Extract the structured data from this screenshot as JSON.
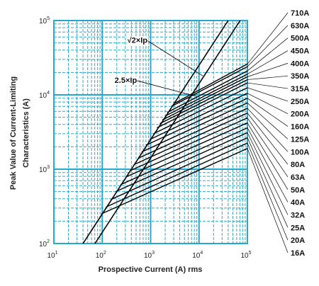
{
  "chart_data": {
    "type": "line",
    "title": "",
    "xlabel": "Prospective Current (A) rms",
    "ylabel_line1": "Peak Value of Current-Limiting",
    "ylabel_line2": "Characteristics (A)",
    "x_scale": "log",
    "y_scale": "log",
    "xlim": [
      10,
      100000
    ],
    "ylim": [
      100,
      100000
    ],
    "x_ticks": [
      {
        "value": 10,
        "mantissa": "10",
        "exp": "1"
      },
      {
        "value": 100,
        "mantissa": "10",
        "exp": "2"
      },
      {
        "value": 1000,
        "mantissa": "10",
        "exp": "3"
      },
      {
        "value": 10000,
        "mantissa": "10",
        "exp": "4"
      },
      {
        "value": 100000,
        "mantissa": "10",
        "exp": "5"
      }
    ],
    "y_ticks": [
      {
        "value": 100,
        "mantissa": "10",
        "exp": "2"
      },
      {
        "value": 1000,
        "mantissa": "10",
        "exp": "3"
      },
      {
        "value": 10000,
        "mantissa": "10",
        "exp": "4"
      },
      {
        "value": 100000,
        "mantissa": "10",
        "exp": "5"
      }
    ],
    "grid": true,
    "grid_color": "#29a8c9",
    "line_color": "#000000",
    "reference_lines": [
      {
        "name": "√2×Ip",
        "factor": 1.414,
        "annotation_at": [
          12000,
          18000
        ]
      },
      {
        "name": "2.5×Ip",
        "factor": 2.5,
        "annotation_at": [
          9000,
          9500
        ]
      }
    ],
    "series": [
      {
        "name": "710A",
        "start": [
          3000,
          7600
        ],
        "end": [
          100000,
          26000
        ]
      },
      {
        "name": "630A",
        "start": [
          2700,
          7000
        ],
        "end": [
          100000,
          24000
        ]
      },
      {
        "name": "500A",
        "start": [
          2200,
          5800
        ],
        "end": [
          100000,
          21000
        ]
      },
      {
        "name": "450A",
        "start": [
          2000,
          5200
        ],
        "end": [
          100000,
          19000
        ]
      },
      {
        "name": "400A",
        "start": [
          1750,
          4600
        ],
        "end": [
          100000,
          17500
        ]
      },
      {
        "name": "350A",
        "start": [
          1550,
          4100
        ],
        "end": [
          100000,
          16000
        ]
      },
      {
        "name": "315A",
        "start": [
          1350,
          3600
        ],
        "end": [
          100000,
          14500
        ]
      },
      {
        "name": "250A",
        "start": [
          1150,
          3000
        ],
        "end": [
          100000,
          12500
        ]
      },
      {
        "name": "200A",
        "start": [
          950,
          2500
        ],
        "end": [
          100000,
          10500
        ]
      },
      {
        "name": "160A",
        "start": [
          800,
          2100
        ],
        "end": [
          100000,
          9000
        ]
      },
      {
        "name": "125A",
        "start": [
          650,
          1700
        ],
        "end": [
          100000,
          7800
        ]
      },
      {
        "name": "100A",
        "start": [
          550,
          1400
        ],
        "end": [
          100000,
          6600
        ]
      },
      {
        "name": "80A",
        "start": [
          450,
          1150
        ],
        "end": [
          100000,
          5700
        ]
      },
      {
        "name": "63A",
        "start": [
          370,
          950
        ],
        "end": [
          100000,
          4900
        ]
      },
      {
        "name": "50A",
        "start": [
          300,
          780
        ],
        "end": [
          100000,
          4200
        ]
      },
      {
        "name": "40A",
        "start": [
          240,
          620
        ],
        "end": [
          100000,
          3600
        ]
      },
      {
        "name": "32A",
        "start": [
          190,
          500
        ],
        "end": [
          100000,
          3100
        ]
      },
      {
        "name": "25A",
        "start": [
          150,
          390
        ],
        "end": [
          100000,
          2650
        ]
      },
      {
        "name": "20A",
        "start": [
          120,
          310
        ],
        "end": [
          100000,
          2250
        ]
      },
      {
        "name": "16A",
        "start": [
          95,
          250
        ],
        "end": [
          100000,
          1900
        ]
      }
    ]
  }
}
